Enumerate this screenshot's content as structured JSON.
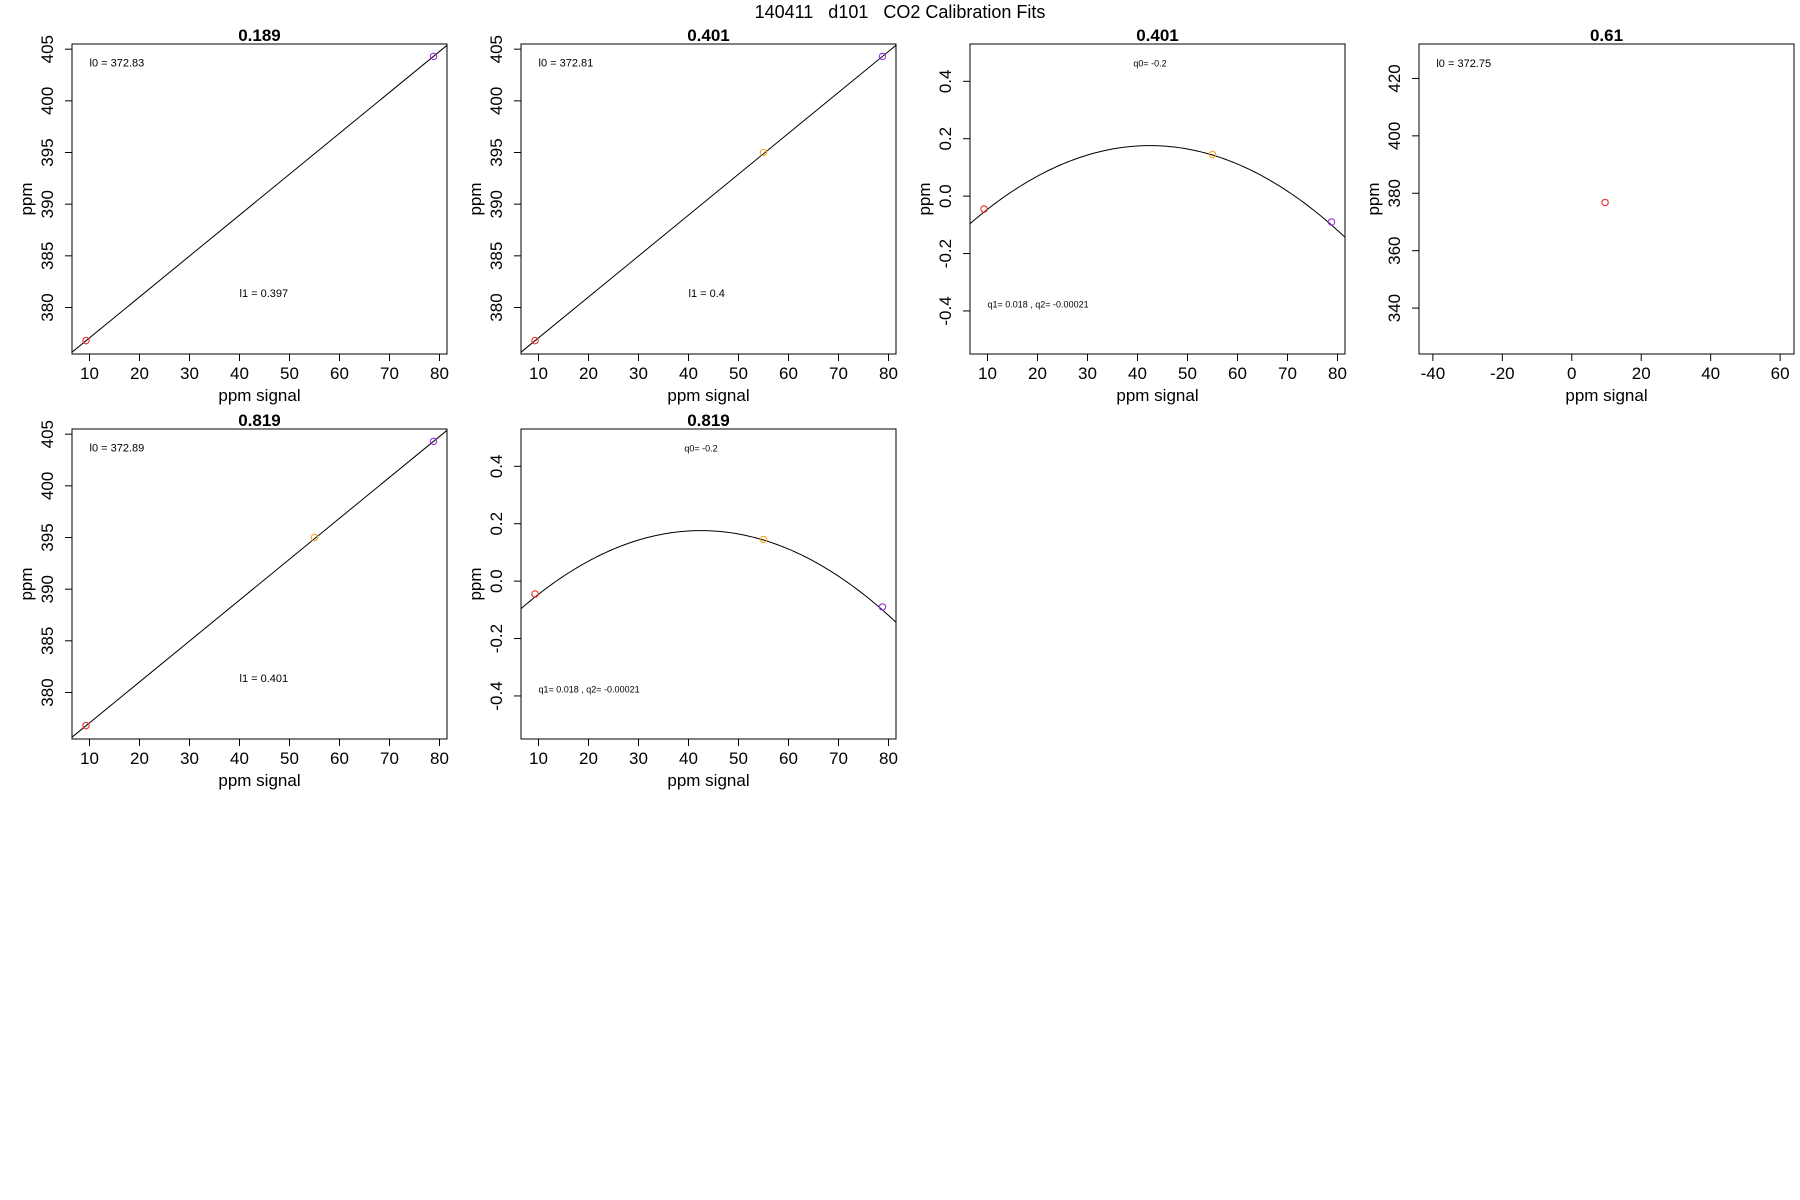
{
  "page_title": "140411   d101   CO2 Calibration Fits",
  "chart_data": [
    {
      "type": "scatter",
      "title": "0.189",
      "xlabel": "ppm signal",
      "ylabel": "ppm",
      "xlim": [
        6.5,
        81.5
      ],
      "ylim": [
        375.5,
        405.5
      ],
      "xticks": [
        10,
        20,
        30,
        40,
        50,
        60,
        70,
        80
      ],
      "yticks": [
        380,
        385,
        390,
        395,
        400,
        405
      ],
      "points": [
        {
          "x": 9.3,
          "y": 376.8,
          "color": "#e8302a"
        },
        {
          "x": 78.8,
          "y": 404.3,
          "color": "#9b30e0"
        }
      ],
      "line": {
        "intercept": 373.1,
        "slope": 0.396
      },
      "annotations": [
        {
          "text": "l0 =  372.83",
          "x": 10,
          "y": 403.6,
          "size": 11
        },
        {
          "text": "l1 =  0.397",
          "x": 40,
          "y": 381.3,
          "size": 11
        }
      ]
    },
    {
      "type": "scatter",
      "title": "0.401",
      "xlabel": "ppm signal",
      "ylabel": "ppm",
      "xlim": [
        6.5,
        81.5
      ],
      "ylim": [
        375.5,
        405.5
      ],
      "xticks": [
        10,
        20,
        30,
        40,
        50,
        60,
        70,
        80
      ],
      "yticks": [
        380,
        385,
        390,
        395,
        400,
        405
      ],
      "points": [
        {
          "x": 9.3,
          "y": 376.8,
          "color": "#e8302a"
        },
        {
          "x": 55.0,
          "y": 395.0,
          "color": "#f5a623"
        },
        {
          "x": 78.8,
          "y": 404.3,
          "color": "#9b30e0"
        }
      ],
      "line": {
        "intercept": 373.1,
        "slope": 0.396
      },
      "annotations": [
        {
          "text": "l0 =  372.81",
          "x": 10,
          "y": 403.6,
          "size": 11
        },
        {
          "text": "l1 =  0.4",
          "x": 40,
          "y": 381.3,
          "size": 11
        }
      ]
    },
    {
      "type": "scatter",
      "title": "0.401",
      "xlabel": "ppm signal",
      "ylabel": "ppm",
      "xlim": [
        6.5,
        81.5
      ],
      "ylim": [
        -0.55,
        0.53
      ],
      "xticks": [
        10,
        20,
        30,
        40,
        50,
        60,
        70,
        80
      ],
      "yticks": [
        -0.4,
        -0.2,
        0.0,
        0.2,
        0.4
      ],
      "points": [
        {
          "x": 9.3,
          "y": -0.045,
          "color": "#e8302a"
        },
        {
          "x": 55.0,
          "y": 0.145,
          "color": "#f5a623"
        },
        {
          "x": 78.8,
          "y": -0.09,
          "color": "#9b30e0"
        }
      ],
      "curve": {
        "vertex_x": 42.5,
        "vertex_y": 0.176,
        "a": -0.00021
      },
      "annotations": [
        {
          "text": "q0= -0.2",
          "x": 42.5,
          "y": 0.46,
          "size": 9
        },
        {
          "text": "q1= 0.018 , q2= -0.00021",
          "x": 10,
          "y": -0.38,
          "size": 9
        }
      ]
    },
    {
      "type": "scatter",
      "title": "0.61",
      "xlabel": "ppm signal",
      "ylabel": "ppm",
      "xlim": [
        -44,
        64
      ],
      "ylim": [
        324,
        432
      ],
      "xticks": [
        -40,
        -20,
        0,
        20,
        40,
        60
      ],
      "yticks": [
        340,
        360,
        380,
        400,
        420
      ],
      "points": [
        {
          "x": 9.6,
          "y": 376.8,
          "color": "#e8302a"
        }
      ],
      "annotations": [
        {
          "text": "l0 =  372.75",
          "x": -39,
          "y": 425,
          "size": 11
        }
      ]
    },
    {
      "type": "scatter",
      "title": "0.819",
      "xlabel": "ppm signal",
      "ylabel": "ppm",
      "xlim": [
        6.5,
        81.5
      ],
      "ylim": [
        375.5,
        405.5
      ],
      "xticks": [
        10,
        20,
        30,
        40,
        50,
        60,
        70,
        80
      ],
      "yticks": [
        380,
        385,
        390,
        395,
        400,
        405
      ],
      "points": [
        {
          "x": 9.3,
          "y": 376.8,
          "color": "#e8302a"
        },
        {
          "x": 55.0,
          "y": 395.0,
          "color": "#f5a623"
        },
        {
          "x": 78.8,
          "y": 404.3,
          "color": "#9b30e0"
        }
      ],
      "line": {
        "intercept": 373.1,
        "slope": 0.396
      },
      "annotations": [
        {
          "text": "l0 =  372.89",
          "x": 10,
          "y": 403.6,
          "size": 11
        },
        {
          "text": "l1 =  0.401",
          "x": 40,
          "y": 381.3,
          "size": 11
        }
      ]
    },
    {
      "type": "scatter",
      "title": "0.819",
      "xlabel": "ppm signal",
      "ylabel": "ppm",
      "xlim": [
        6.5,
        81.5
      ],
      "ylim": [
        -0.55,
        0.53
      ],
      "xticks": [
        10,
        20,
        30,
        40,
        50,
        60,
        70,
        80
      ],
      "yticks": [
        -0.4,
        -0.2,
        0.0,
        0.2,
        0.4
      ],
      "points": [
        {
          "x": 9.3,
          "y": -0.045,
          "color": "#e8302a"
        },
        {
          "x": 55.0,
          "y": 0.145,
          "color": "#f5a623"
        },
        {
          "x": 78.8,
          "y": -0.09,
          "color": "#9b30e0"
        }
      ],
      "curve": {
        "vertex_x": 42.5,
        "vertex_y": 0.176,
        "a": -0.00021
      },
      "annotations": [
        {
          "text": "q0= -0.2",
          "x": 42.5,
          "y": 0.46,
          "size": 9
        },
        {
          "text": "q1= 0.018 , q2= -0.00021",
          "x": 10,
          "y": -0.38,
          "size": 9
        }
      ]
    }
  ]
}
